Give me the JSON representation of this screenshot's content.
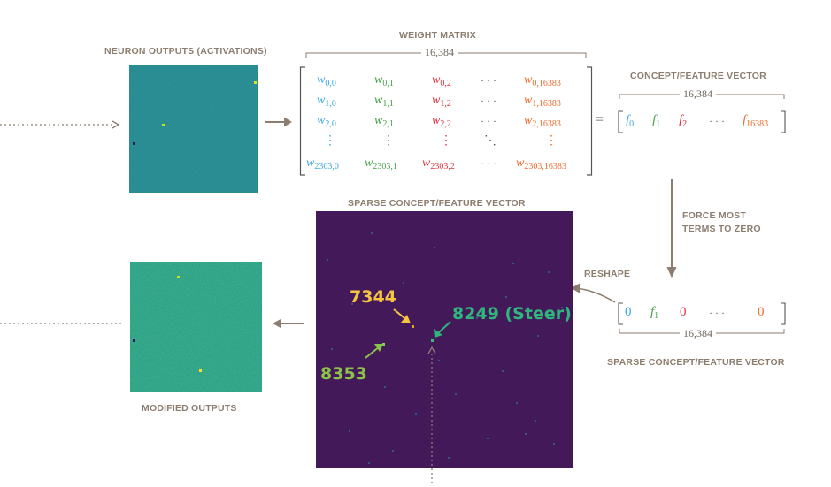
{
  "labels": {
    "neuron_outputs": "NEURON OUTPUTS (ACTIVATIONS)",
    "weight_matrix": "WEIGHT MATRIX",
    "concept_vector": "CONCEPT/FEATURE VECTOR",
    "sparse_concept_top": "SPARSE CONCEPT/FEATURE VECTOR",
    "force_zero_1": "FORCE MOST",
    "force_zero_2": "TERMS TO ZERO",
    "reshape": "RESHAPE",
    "sparse_concept_bottom": "SPARSE CONCEPT/FEATURE VECTOR",
    "modified_outputs": "MODIFIED OUTPUTS"
  },
  "dimension": "16,384",
  "matrix": {
    "rows": [
      [
        "0,0",
        "0,1",
        "0,2",
        "0,16383"
      ],
      [
        "1,0",
        "1,1",
        "1,2",
        "1,16383"
      ],
      [
        "2,0",
        "2,1",
        "2,2",
        "2,16383"
      ],
      [
        "2303,0",
        "2303,1",
        "2303,2",
        "2303,16383"
      ]
    ],
    "symbol": "w",
    "hdots": "· · ·",
    "vdots": "⋮",
    "ddots": "⋱"
  },
  "equals": "=",
  "feature_vector": [
    "f",
    "0",
    "f",
    "1",
    "f",
    "2",
    "· · ·",
    "f",
    "16383"
  ],
  "sparse_vector": {
    "a": "0",
    "b_sym": "f",
    "b_sub": "1",
    "c": "0",
    "dots": "· · ·",
    "d": "0"
  },
  "annotations": {
    "a7344": "7344",
    "a8249": "8249 (Steer)",
    "a8353": "8353"
  },
  "colors": {
    "label_gray": "#8c7d6e",
    "arrow_gray": "#8c7d6e",
    "viridis_teal": "#21908d",
    "sparse_bg": "#43195a",
    "annot_yellow": "#f5c542",
    "annot_green": "#2fb67c",
    "annot_lime": "#8bc34a"
  }
}
